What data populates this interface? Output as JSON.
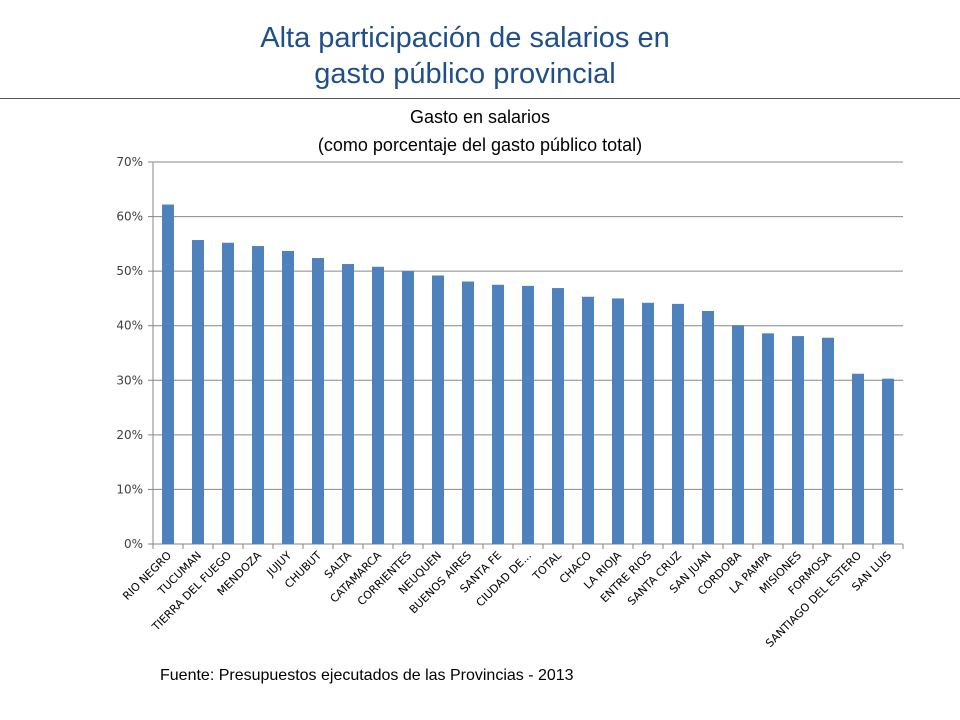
{
  "slide": {
    "title_line1": "Alta participación de salarios en",
    "title_line2": "gasto público provincial"
  },
  "source": "Fuente: Presupuestos ejecutados de las Provincias - 2013",
  "colors": {
    "title": "#1f4e8c",
    "bar": "#4f81bd",
    "grid": "#868686"
  },
  "chart_data": {
    "type": "bar",
    "title": "Gasto en salarios",
    "subtitle": "(como porcentaje del gasto público total)",
    "xlabel": "",
    "ylabel": "",
    "ylim": [
      0,
      70
    ],
    "yticks": [
      0,
      10,
      20,
      30,
      40,
      50,
      60,
      70
    ],
    "ytick_labels": [
      "0%",
      "10%",
      "20%",
      "30%",
      "40%",
      "50%",
      "60%",
      "70%"
    ],
    "grid": true,
    "legend": "none",
    "categories": [
      "RIO NEGRO",
      "TUCUMAN",
      "TIERRA DEL FUEGO",
      "MENDOZA",
      "JUJUY",
      "CHUBUT",
      "SALTA",
      "CATAMARCA",
      "CORRIENTES",
      "NEUQUEN",
      "BUENOS AIRES",
      "SANTA FE",
      "CIUDAD DE...",
      "TOTAL",
      "CHACO",
      "LA RIOJA",
      "ENTRE RIOS",
      "SANTA CRUZ",
      "SAN JUAN",
      "CORDOBA",
      "LA PAMPA",
      "MISIONES",
      "FORMOSA",
      "SANTIAGO DEL ESTERO",
      "SAN LUIS"
    ],
    "values": [
      62.2,
      55.7,
      55.2,
      54.6,
      53.7,
      52.4,
      51.3,
      50.8,
      50.0,
      49.2,
      48.1,
      47.5,
      47.3,
      46.9,
      45.3,
      45.0,
      44.2,
      44.0,
      42.7,
      40.1,
      38.6,
      38.1,
      37.8,
      31.2,
      30.3
    ]
  }
}
